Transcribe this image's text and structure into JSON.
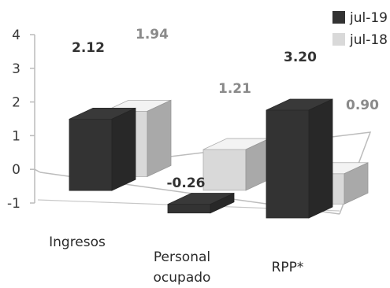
{
  "chart_data": {
    "type": "bar",
    "style": "3d-clustered",
    "categories": [
      "Ingresos",
      [
        "Personal",
        "ocupado"
      ],
      "RPP*"
    ],
    "series": [
      {
        "name": "jul-19",
        "values": [
          2.12,
          -0.26,
          3.2
        ],
        "labels": [
          "2.12",
          "-0.26",
          "3.20"
        ],
        "color": "#333333",
        "label_color": "#333333"
      },
      {
        "name": "jul-18",
        "values": [
          1.94,
          1.21,
          0.9
        ],
        "labels": [
          "1.94",
          "1.21",
          "0.90"
        ],
        "color": "#d9d9d9",
        "label_color": "#8a8a8a"
      }
    ],
    "yticks": [
      "4",
      "3",
      "2",
      "1",
      "0",
      "-1"
    ],
    "ylim": [
      -1,
      4
    ],
    "legend": "top-right",
    "grid": false
  }
}
